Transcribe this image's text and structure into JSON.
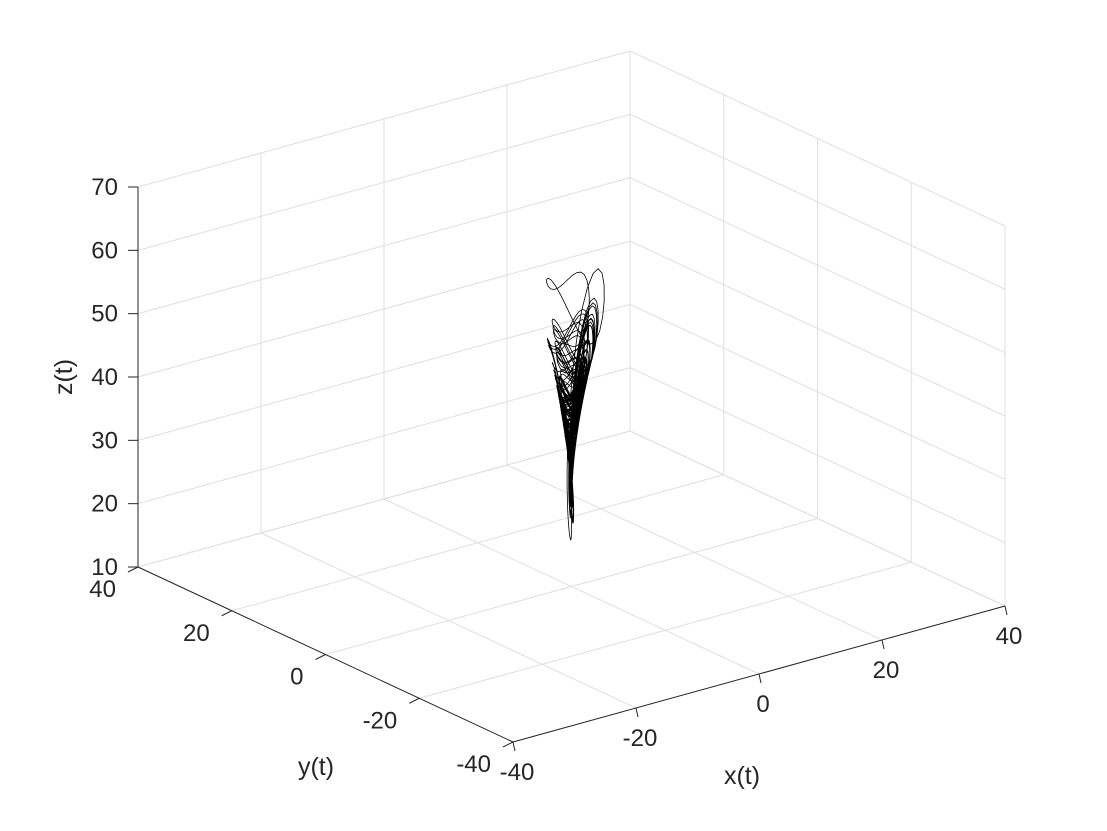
{
  "chart_data": {
    "type": "line",
    "projection": "3d",
    "title": "",
    "xlabel": "x(t)",
    "ylabel": "y(t)",
    "zlabel": "z(t)",
    "xlim": [
      -40,
      40
    ],
    "ylim": [
      -40,
      40
    ],
    "zlim": [
      10,
      70
    ],
    "x_ticks": [
      -40,
      -20,
      0,
      20,
      40
    ],
    "y_ticks": [
      -40,
      -20,
      0,
      20,
      40
    ],
    "z_ticks": [
      10,
      20,
      30,
      40,
      50,
      60,
      70
    ],
    "x_tick_labels": [
      "-40",
      "-20",
      "0",
      "20",
      "40"
    ],
    "y_tick_labels": [
      "-40",
      "-20",
      "0",
      "20",
      "40"
    ],
    "z_tick_labels": [
      "10",
      "20",
      "30",
      "40",
      "50",
      "60",
      "70"
    ],
    "grid": true,
    "box": false,
    "legend": "none",
    "series": [
      {
        "style": "solid",
        "description_points": [
          {
            "x": -2.5,
            "y": -4.0,
            "z": 20.0
          },
          {
            "x": 1.5,
            "y": -0.5,
            "z": 14.5
          },
          {
            "x": 2.5,
            "y": 1.5,
            "z": 13.0
          },
          {
            "x": 1.5,
            "y": 2.5,
            "z": 15.0
          },
          {
            "x": 0.5,
            "y": 1.0,
            "z": 19.5
          },
          {
            "x": 1.0,
            "y": 1.0,
            "z": 26.0
          },
          {
            "x": 5.0,
            "y": 4.0,
            "z": 40.0
          },
          {
            "x": 8.0,
            "y": 7.0,
            "z": 54.0
          },
          {
            "x": 5.0,
            "y": 8.0,
            "z": 64.0
          },
          {
            "x": 0.0,
            "y": 4.0,
            "z": 55.0
          },
          {
            "x": -6.0,
            "y": -6.0,
            "z": 40.0
          },
          {
            "x": -10.0,
            "y": -12.0,
            "z": 44.0
          },
          {
            "x": -5.0,
            "y": -8.0,
            "z": 46.0
          },
          {
            "x": 0.0,
            "y": 0.0,
            "z": 28.0
          }
        ]
      }
    ],
    "colors": {
      "line": "#000000",
      "axis": "#262626",
      "grid": "#dfdfdf"
    }
  }
}
